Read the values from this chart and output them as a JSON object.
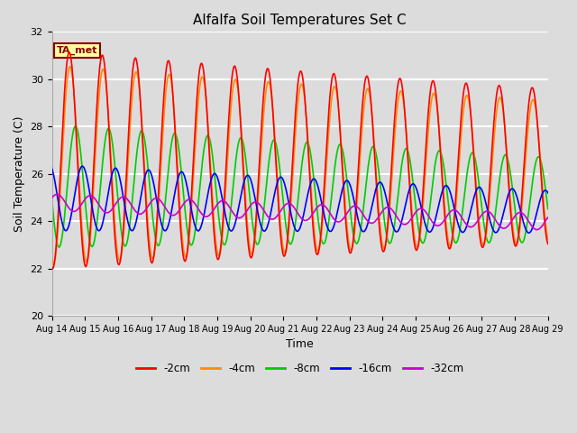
{
  "title": "Alfalfa Soil Temperatures Set C",
  "xlabel": "Time",
  "ylabel": "Soil Temperature (C)",
  "ylim": [
    20,
    32
  ],
  "xlim": [
    0,
    15
  ],
  "background_color": "#dcdcdc",
  "plot_bg_color": "#dcdcdc",
  "x_tick_labels": [
    "Aug 14",
    "Aug 15",
    "Aug 16",
    "Aug 17",
    "Aug 18",
    "Aug 19",
    "Aug 20",
    "Aug 21",
    "Aug 22",
    "Aug 23",
    "Aug 24",
    "Aug 25",
    "Aug 26",
    "Aug 27",
    "Aug 28",
    "Aug 29"
  ],
  "y_ticks": [
    20,
    22,
    24,
    26,
    28,
    30,
    32
  ],
  "legend_entries": [
    "-2cm",
    "-4cm",
    "-8cm",
    "-16cm",
    "-32cm"
  ],
  "line_colors": {
    "-2cm": "#ff0000",
    "-4cm": "#ff8c00",
    "-8cm": "#00cc00",
    "-16cm": "#0000ff",
    "-32cm": "#cc00cc"
  },
  "ta_met_box_color": "#ffffa0",
  "ta_met_text_color": "#880000",
  "ta_met_border_color": "#880000",
  "grid_color": "#f0f0f0",
  "line_width": 1.2
}
